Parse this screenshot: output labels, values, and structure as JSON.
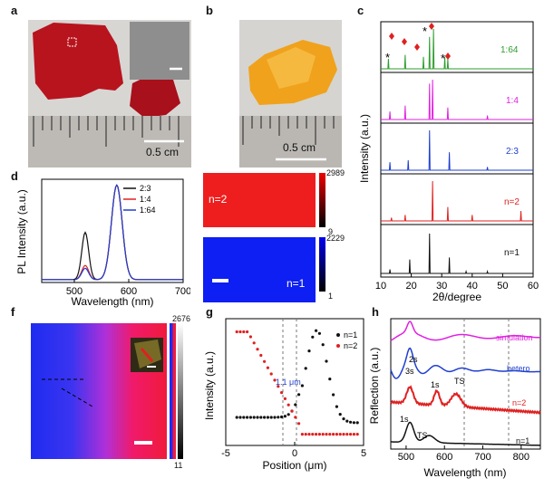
{
  "panels": {
    "a": {
      "label": "a",
      "scale": "0.5 cm"
    },
    "b": {
      "label": "b",
      "scale": "0.5 cm"
    },
    "c": {
      "label": "c",
      "ylabel": "Intensity (a.u.)",
      "xlabel": "2θ/degree",
      "xticks": [
        "10",
        "20",
        "30",
        "40",
        "50",
        "60"
      ],
      "traces": [
        {
          "name": "1:64",
          "color": "#2e9d2e"
        },
        {
          "name": "1:4",
          "color": "#e020e0"
        },
        {
          "name": "2:3",
          "color": "#1f3fcf"
        },
        {
          "name": "n=2",
          "color": "#e02020"
        },
        {
          "name": "n=1",
          "color": "#111111"
        }
      ]
    },
    "d": {
      "label": "d",
      "ylabel": "PL Intensity (a.u.)",
      "xlabel": "Wavelength (nm)",
      "xticks": [
        "500",
        "600",
        "700"
      ],
      "legend": [
        {
          "name": "2:3",
          "color": "#111111"
        },
        {
          "name": "1:4",
          "color": "#e02020"
        },
        {
          "name": "1:64",
          "color": "#1f3fcf"
        }
      ]
    },
    "e": {
      "label": "e",
      "top_text": "n=2",
      "bottom_text": "n=1",
      "top_max": "2989",
      "top_min": "9",
      "bottom_max": "2229",
      "bottom_min": "1"
    },
    "f": {
      "label": "f",
      "bar_max": "2676",
      "bar_min": "11"
    },
    "g": {
      "label": "g",
      "ylabel": "Intensity (a.u.)",
      "xlabel": "Position (μm)",
      "xticks": [
        "-5",
        "0",
        "5"
      ],
      "annotation": "1.1 μm",
      "legend": [
        {
          "name": "n=1",
          "color": "#111111"
        },
        {
          "name": "n=2",
          "color": "#e02020"
        }
      ]
    },
    "h": {
      "label": "h",
      "ylabel": "Reflection (a.u.)",
      "xlabel": "Wavelength (nm)",
      "xticks": [
        "500",
        "600",
        "700",
        "800"
      ],
      "labels": {
        "simulation": "simulation",
        "hetero": "hetero",
        "n2": "n=2",
        "n1": "n=1",
        "s1_n1": "1s",
        "ts_n1": "TS",
        "s1_n2": "1s",
        "ts_n2": "TS",
        "s2": "2s",
        "s3": "3s"
      }
    }
  },
  "chart_data": [
    {
      "type": "line",
      "title": "",
      "xlabel": "2θ/degree",
      "ylabel": "Intensity (a.u.)",
      "xlim": [
        10,
        60
      ],
      "series": [
        {
          "name": "n=1",
          "peaks": [
            [
              13,
              0.1
            ],
            [
              19.5,
              0.35
            ],
            [
              26,
              1.0
            ],
            [
              32.5,
              0.4
            ],
            [
              38,
              0.05
            ],
            [
              45,
              0.05
            ]
          ]
        },
        {
          "name": "n=2",
          "peaks": [
            [
              13.5,
              0.08
            ],
            [
              18,
              0.15
            ],
            [
              27,
              1.0
            ],
            [
              32,
              0.35
            ],
            [
              40,
              0.15
            ],
            [
              56,
              0.25
            ]
          ]
        },
        {
          "name": "2:3",
          "peaks": [
            [
              13,
              0.2
            ],
            [
              19,
              0.25
            ],
            [
              26,
              1.0
            ],
            [
              32.5,
              0.45
            ],
            [
              45,
              0.08
            ]
          ]
        },
        {
          "name": "1:4",
          "peaks": [
            [
              13,
              0.2
            ],
            [
              18,
              0.35
            ],
            [
              26,
              0.9
            ],
            [
              27,
              1.0
            ],
            [
              32,
              0.3
            ],
            [
              45,
              0.1
            ]
          ]
        },
        {
          "name": "1:64",
          "peaks": [
            [
              12.5,
              0.25
            ],
            [
              18,
              0.35
            ],
            [
              24,
              0.3
            ],
            [
              26,
              0.8
            ],
            [
              27.3,
              1.0
            ],
            [
              31,
              0.3
            ],
            [
              32,
              0.25
            ]
          ]
        }
      ]
    },
    {
      "type": "line",
      "title": "",
      "xlabel": "Wavelength (nm)",
      "ylabel": "PL Intensity (a.u.)",
      "xlim": [
        440,
        700
      ],
      "series": [
        {
          "name": "2:3",
          "peaks": [
            [
              520,
              0.5
            ],
            [
              578,
              1.0
            ]
          ]
        },
        {
          "name": "1:4",
          "peaks": [
            [
              520,
              0.15
            ],
            [
              578,
              1.0
            ]
          ]
        },
        {
          "name": "1:64",
          "peaks": [
            [
              520,
              0.12
            ],
            [
              578,
              1.0
            ]
          ]
        }
      ]
    },
    {
      "type": "scatter",
      "title": "",
      "xlabel": "Position (μm)",
      "ylabel": "Intensity (a.u.)",
      "xlim": [
        -5,
        5
      ],
      "series": [
        {
          "name": "n=1"
        },
        {
          "name": "n=2"
        }
      ]
    },
    {
      "type": "line",
      "title": "",
      "xlabel": "Wavelength (nm)",
      "ylabel": "Reflection (a.u.)",
      "xlim": [
        460,
        850
      ],
      "series": [
        {
          "name": "n=1"
        },
        {
          "name": "n=2"
        },
        {
          "name": "hetero"
        },
        {
          "name": "simulation"
        }
      ]
    }
  ]
}
